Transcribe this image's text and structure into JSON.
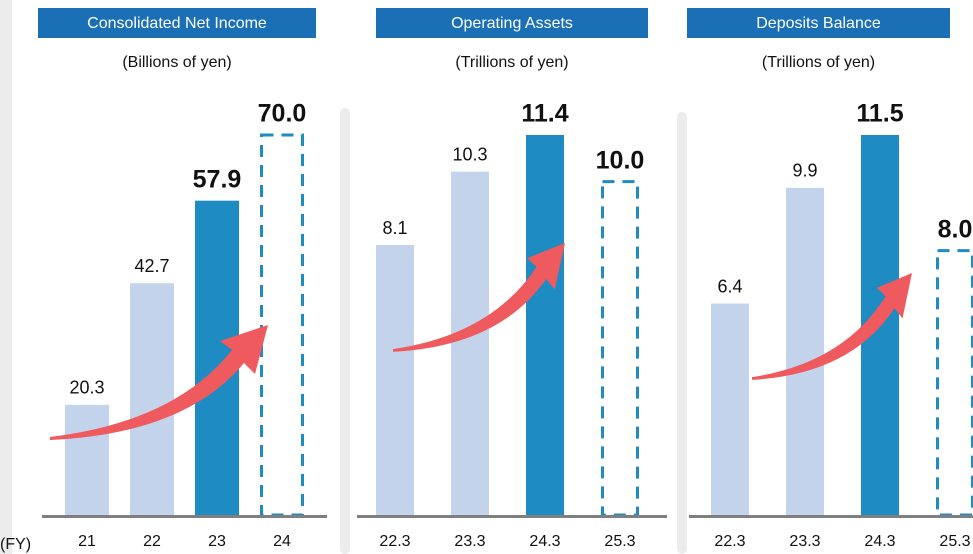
{
  "chart_data": [
    {
      "type": "bar",
      "title": "Consolidated Net Income",
      "subtitle": "(Billions of yen)",
      "x_label": "(FY)",
      "categories": [
        "21",
        "22",
        "23",
        "24"
      ],
      "values": [
        20.3,
        42.7,
        57.9,
        70.0
      ],
      "value_labels": [
        "20.3",
        "42.7",
        "57.9",
        "70.0"
      ],
      "color": "#c3d3eb",
      "highlight_color": "#1e8bc3",
      "header_color": "#1a6fb5"
    },
    {
      "type": "bar",
      "title": "Operating Assets",
      "subtitle": "(Trillions of yen)",
      "categories": [
        "22.3",
        "23.3",
        "24.3",
        "25.3"
      ],
      "values": [
        8.1,
        10.3,
        11.4,
        10.0
      ],
      "value_labels": [
        "8.1",
        "10.3",
        "11.4",
        "10.0"
      ],
      "color": "#c3d3eb",
      "highlight_color": "#1e8bc3",
      "header_color": "#1a6fb5"
    },
    {
      "type": "bar",
      "title": "Deposits Balance",
      "subtitle": "(Trillions of yen)",
      "categories": [
        "22.3",
        "23.3",
        "24.3",
        "25.3"
      ],
      "values": [
        6.4,
        9.9,
        11.5,
        8.0
      ],
      "value_labels": [
        "6.4",
        "9.9",
        "11.5",
        "8.0"
      ],
      "color": "#c3d3eb",
      "highlight_color": "#1e8bc3",
      "header_color": "#1a6fb5"
    }
  ]
}
